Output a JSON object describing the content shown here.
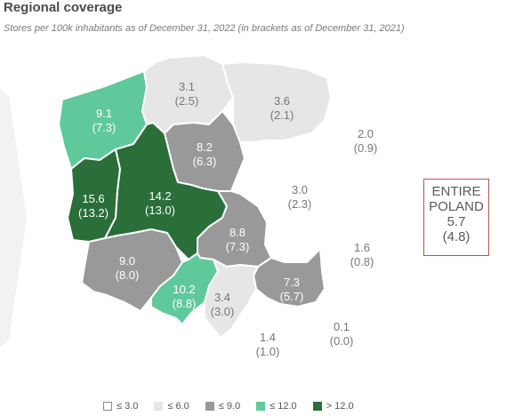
{
  "header": {
    "title": "Regional coverage",
    "subtitle": "Stores per 100k inhabitants as of December 31, 2022 (in brackets as of December 31, 2021)"
  },
  "colors": {
    "le3": "#ffffff",
    "le6": "#e6e6e6",
    "le9": "#999999",
    "le12": "#5fc99b",
    "gt12": "#2a6e3a",
    "border": "#c0504d"
  },
  "regions": [
    {
      "id": "zachodniopomorskie",
      "value": "9.1",
      "prev": "(7.3)",
      "class": "le12"
    },
    {
      "id": "pomorskie",
      "value": "3.1",
      "prev": "(2.5)",
      "class": "le6"
    },
    {
      "id": "warminsko-mazurskie",
      "value": "3.6",
      "prev": "(2.1)",
      "class": "le6"
    },
    {
      "id": "podlaskie",
      "value": "2.0",
      "prev": "(0.9)",
      "class": "le3"
    },
    {
      "id": "kujawsko-pomorskie",
      "value": "8.2",
      "prev": "(6.3)",
      "class": "le9"
    },
    {
      "id": "lubuskie",
      "value": "15.6",
      "prev": "(13.2)",
      "class": "gt12"
    },
    {
      "id": "wielkopolskie",
      "value": "14.2",
      "prev": "(13.0)",
      "class": "gt12"
    },
    {
      "id": "mazowieckie",
      "value": "3.0",
      "prev": "(2.3)",
      "class": "le3"
    },
    {
      "id": "lodzkie",
      "value": "8.8",
      "prev": "(7.3)",
      "class": "le9"
    },
    {
      "id": "dolnoslaskie",
      "value": "9.0",
      "prev": "(8.0)",
      "class": "le9"
    },
    {
      "id": "lubelskie",
      "value": "1.6",
      "prev": "(0.8)",
      "class": "le3"
    },
    {
      "id": "opolskie",
      "value": "10.2",
      "prev": "(8.8)",
      "class": "le12"
    },
    {
      "id": "swietokrzyskie",
      "value": "7.3",
      "prev": "(5.7)",
      "class": "le9"
    },
    {
      "id": "slaskie",
      "value": "3.4",
      "prev": "(3.0)",
      "class": "le6"
    },
    {
      "id": "malopolskie",
      "value": "1.4",
      "prev": "(1.0)",
      "class": "le3"
    },
    {
      "id": "podkarpackie",
      "value": "0.1",
      "prev": "(0.0)",
      "class": "le3"
    }
  ],
  "total": {
    "line1": "ENTIRE",
    "line2": "POLAND",
    "value": "5.7",
    "prev": "(4.8)"
  },
  "legend": [
    {
      "label": "≤ 3.0",
      "class": "le3"
    },
    {
      "label": "≤ 6.0",
      "class": "le6"
    },
    {
      "label": "≤ 9.0",
      "class": "le9"
    },
    {
      "label": "≤ 12.0",
      "class": "le12"
    },
    {
      "label": "> 12.0",
      "class": "gt12"
    }
  ]
}
